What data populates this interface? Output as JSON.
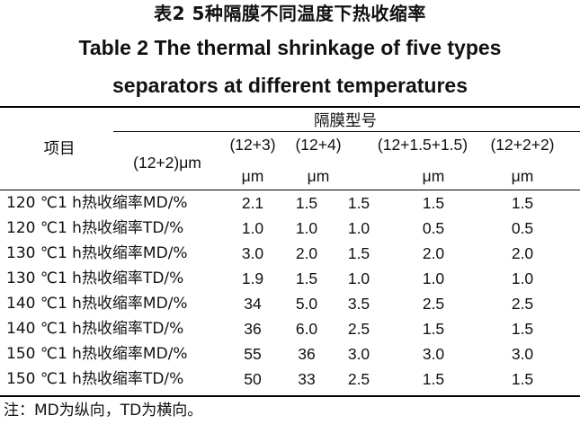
{
  "title_cn": "表2 5种隔膜不同温度下热收缩率",
  "title_en_line1": "Table 2 The thermal shrinkage of five types",
  "title_en_line2": "separators at different temperatures",
  "header": {
    "item": "项目",
    "group": "隔膜型号",
    "col1": "(12+2)μm",
    "col2_top": "(12+3)",
    "col2_unit": "μm",
    "col3_top": "(12+4)",
    "col3_unit": "μm",
    "col4_top": "(12+1.5+1.5)",
    "col4_unit": "μm",
    "col5_top": "(12+2+2)",
    "col5_unit": "μm"
  },
  "rows": [
    {
      "label": "120 ℃1 h热收缩率MD/%",
      "values": [
        "2.1",
        "1.5",
        "1.5",
        "1.5",
        "1.5"
      ]
    },
    {
      "label": "120 ℃1 h热收缩率TD/%",
      "values": [
        "1.0",
        "1.0",
        "1.0",
        "0.5",
        "0.5"
      ]
    },
    {
      "label": "130 ℃1 h热收缩率MD/%",
      "values": [
        "3.0",
        "2.0",
        "1.5",
        "2.0",
        "2.0"
      ]
    },
    {
      "label": "130 ℃1 h热收缩率TD/%",
      "values": [
        "1.9",
        "1.5",
        "1.0",
        "1.0",
        "1.0"
      ]
    },
    {
      "label": "140 ℃1 h热收缩率MD/%",
      "values": [
        "34",
        "5.0",
        "3.5",
        "2.5",
        "2.5"
      ]
    },
    {
      "label": "140 ℃1 h热收缩率TD/%",
      "values": [
        "36",
        "6.0",
        "2.5",
        "1.5",
        "1.5"
      ]
    },
    {
      "label": "150 ℃1 h热收缩率MD/%",
      "values": [
        "55",
        "36",
        "3.0",
        "3.0",
        "3.0"
      ]
    },
    {
      "label": "150 ℃1 h热收缩率TD/%",
      "values": [
        "50",
        "33",
        "2.5",
        "1.5",
        "1.5"
      ]
    }
  ],
  "note": "注：MD为纵向，TD为横向。"
}
